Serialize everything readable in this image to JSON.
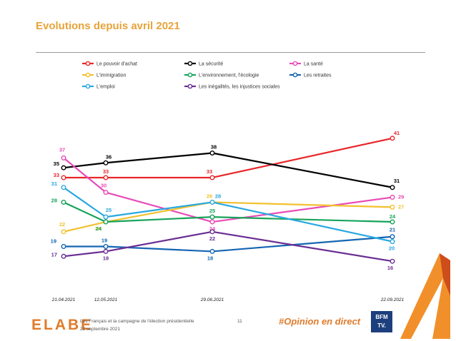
{
  "title": "Evolutions depuis avril 2021",
  "chart_data": {
    "type": "line",
    "x": [
      "21.04.2021",
      "12.05.2021",
      "29.06.2021",
      "22.09.2021"
    ],
    "x_days": [
      0,
      21,
      69,
      154
    ],
    "ylim": [
      14,
      43
    ],
    "legend_position": "top",
    "series": [
      {
        "name": "Le pouvoir d'achat",
        "color": "#e8262a",
        "values": [
          33,
          33,
          33,
          41
        ],
        "labels": [
          "33",
          "33",
          "33",
          "41"
        ]
      },
      {
        "name": "La sécurité",
        "color": "#000000",
        "values": [
          35,
          36,
          38,
          31
        ],
        "labels": [
          "35",
          "36",
          "38",
          "31"
        ]
      },
      {
        "name": "La santé",
        "color": "#e84cb8",
        "values": [
          37,
          30,
          24,
          29
        ],
        "labels": [
          "37",
          "30",
          "24",
          "29"
        ]
      },
      {
        "name": "L'immigration",
        "color": "#f2c12e",
        "values": [
          22,
          24,
          28,
          27
        ],
        "labels": [
          "22",
          "24",
          "28",
          "27"
        ]
      },
      {
        "name": "L'environnement, l'écologie",
        "color": "#17a35a",
        "values": [
          28,
          24,
          25,
          24
        ],
        "labels": [
          "28",
          "24",
          "25",
          "24"
        ]
      },
      {
        "name": "Les retraites",
        "color": "#1565b3",
        "values": [
          19,
          19,
          18,
          21
        ],
        "labels": [
          "19",
          "19",
          "18",
          "21"
        ]
      },
      {
        "name": "L'emploi",
        "color": "#29a8e0",
        "values": [
          31,
          25,
          28,
          20
        ],
        "labels": [
          "31",
          "25",
          "28",
          "20"
        ]
      },
      {
        "name": "Les inégalités, les injustices sociales",
        "color": "#6a2e93",
        "values": [
          17,
          18,
          22,
          16
        ],
        "labels": [
          "17",
          "18",
          "22",
          "16"
        ]
      }
    ]
  },
  "footer": {
    "logo": "ELABE",
    "study": "Les Français et la campagne de l'élection présidentielle",
    "date": "22 septembre 2021",
    "page": "11",
    "hashtag": "#Opinion en direct",
    "partner_line1": "BFM",
    "partner_line2": "TV."
  }
}
